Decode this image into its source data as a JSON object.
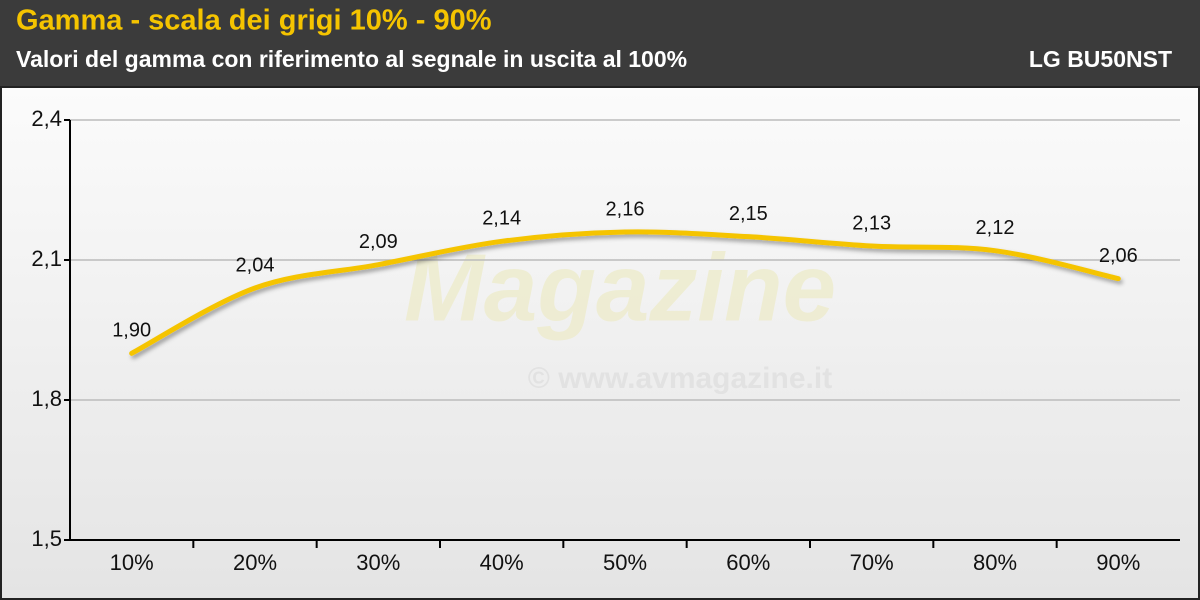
{
  "chart_data": {
    "type": "line",
    "title": "Gamma - scala dei grigi 10% - 90%",
    "subtitle": "Valori del gamma con riferimento al segnale in uscita al 100%",
    "model": "LG BU50NST",
    "watermark": {
      "logo": "Magazine",
      "url": "© www.avmagazine.it"
    },
    "categories": [
      "10%",
      "20%",
      "30%",
      "40%",
      "50%",
      "60%",
      "70%",
      "80%",
      "90%"
    ],
    "values": [
      1.9,
      2.04,
      2.09,
      2.14,
      2.16,
      2.15,
      2.13,
      2.12,
      2.06
    ],
    "value_labels": [
      "1,90",
      "2,04",
      "2,09",
      "2,14",
      "2,16",
      "2,15",
      "2,13",
      "2,12",
      "2,06"
    ],
    "color": "#f5c400",
    "ylim": [
      1.5,
      2.4
    ],
    "yticks": [
      {
        "value": 1.5,
        "label": "1,5"
      },
      {
        "value": 1.8,
        "label": "1,8"
      },
      {
        "value": 2.1,
        "label": "2,1"
      },
      {
        "value": 2.4,
        "label": "2,4"
      }
    ],
    "grid": true
  }
}
